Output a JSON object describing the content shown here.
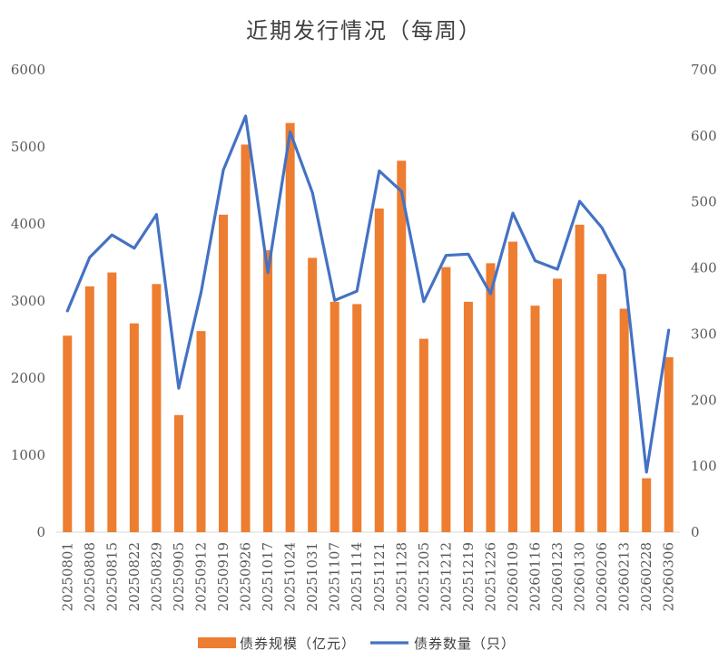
{
  "chart_data": {
    "type": "bar",
    "title": "近期发行情况（每周）",
    "categories": [
      "20250801",
      "20250808",
      "20250815",
      "20250822",
      "20250829",
      "20250905",
      "20250912",
      "20250919",
      "20250926",
      "20251017",
      "20251024",
      "20251031",
      "20251107",
      "20251114",
      "20251121",
      "20251128",
      "20251205",
      "20251212",
      "20251219",
      "20251226",
      "20260109",
      "20260116",
      "20260123",
      "20260130",
      "20260206",
      "20260213",
      "20260228",
      "20260306"
    ],
    "series": [
      {
        "name": "债券规模（亿元）",
        "type": "bar",
        "axis": "left",
        "color": "#ED7D31",
        "values": [
          2550,
          3190,
          3370,
          2710,
          3220,
          1520,
          2610,
          4120,
          5030,
          3660,
          5310,
          3560,
          2990,
          2960,
          4200,
          4820,
          2510,
          3440,
          2990,
          3490,
          3770,
          2940,
          3290,
          3990,
          3350,
          2900,
          700,
          2270
        ]
      },
      {
        "name": "债券数量（只）",
        "type": "line",
        "axis": "right",
        "color": "#4472C4",
        "values": [
          335,
          416,
          450,
          430,
          481,
          218,
          363,
          548,
          630,
          393,
          606,
          514,
          351,
          365,
          547,
          516,
          349,
          419,
          421,
          361,
          483,
          411,
          398,
          501,
          461,
          397,
          91,
          306
        ]
      }
    ],
    "ylim_left": [
      0,
      6000
    ],
    "ylim_right": [
      0,
      700
    ],
    "yticks_left": [
      "0",
      "1000",
      "2000",
      "3000",
      "4000",
      "5000",
      "6000"
    ],
    "yticks_right": [
      "0",
      "100",
      "200",
      "300",
      "400",
      "500",
      "600",
      "700"
    ],
    "legend_position": "bottom",
    "grid": false
  }
}
